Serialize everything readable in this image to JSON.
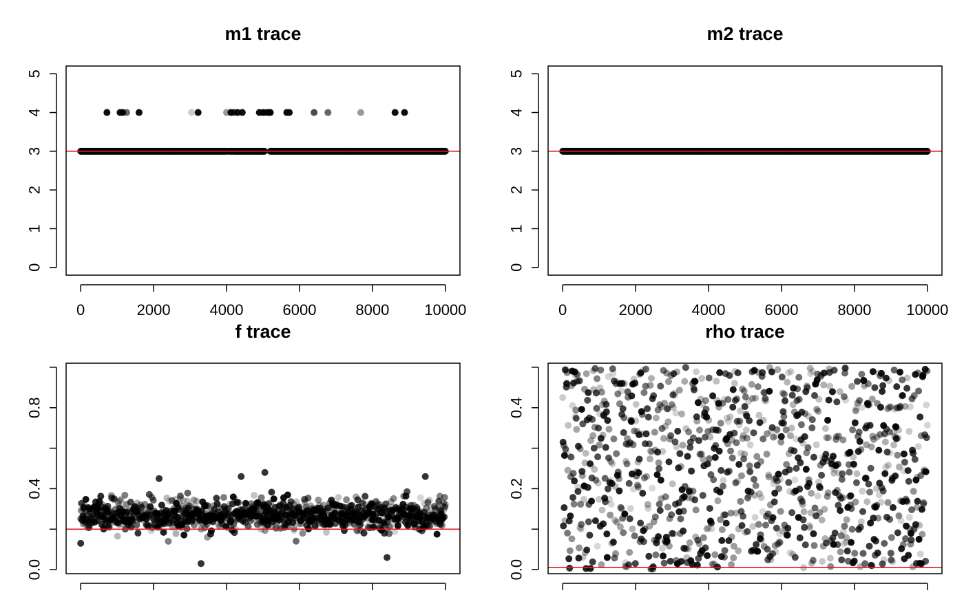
{
  "chart_data": [
    {
      "type": "scatter",
      "title": "m1 trace",
      "xlim": [
        0,
        10000
      ],
      "ylim": [
        -0.2,
        5.2
      ],
      "xticks": [
        0,
        2000,
        4000,
        6000,
        8000,
        10000
      ],
      "yticks": [
        0,
        1,
        2,
        3,
        4,
        5
      ],
      "x_tick_labels": [
        "0",
        "2000",
        "4000",
        "6000",
        "8000",
        "10000"
      ],
      "y_tick_labels": [
        "0",
        "1",
        "2",
        "3",
        "4",
        "5"
      ],
      "reference_line": 3,
      "reference_color": "#e41a1c",
      "point_color": "#000000",
      "show_x_tick_labels": true,
      "points": [
        {
          "x": 720,
          "y": 4,
          "a": 0.95
        },
        {
          "x": 1080,
          "y": 4,
          "a": 0.95
        },
        {
          "x": 1150,
          "y": 4,
          "a": 0.95
        },
        {
          "x": 1260,
          "y": 4,
          "a": 0.6
        },
        {
          "x": 1600,
          "y": 4,
          "a": 0.95
        },
        {
          "x": 3040,
          "y": 4,
          "a": 0.2
        },
        {
          "x": 3220,
          "y": 4,
          "a": 0.95
        },
        {
          "x": 4000,
          "y": 4,
          "a": 0.4
        },
        {
          "x": 4120,
          "y": 4,
          "a": 0.95
        },
        {
          "x": 4200,
          "y": 4,
          "a": 0.8
        },
        {
          "x": 4300,
          "y": 4,
          "a": 0.95
        },
        {
          "x": 4430,
          "y": 4,
          "a": 0.95
        },
        {
          "x": 4900,
          "y": 4,
          "a": 0.95
        },
        {
          "x": 5000,
          "y": 4,
          "a": 0.95
        },
        {
          "x": 5080,
          "y": 4,
          "a": 0.8
        },
        {
          "x": 5150,
          "y": 4,
          "a": 0.95
        },
        {
          "x": 5200,
          "y": 4,
          "a": 0.95
        },
        {
          "x": 5650,
          "y": 4,
          "a": 0.95
        },
        {
          "x": 5720,
          "y": 4,
          "a": 0.95
        },
        {
          "x": 6400,
          "y": 4,
          "a": 0.7
        },
        {
          "x": 6780,
          "y": 4,
          "a": 0.6
        },
        {
          "x": 7680,
          "y": 4,
          "a": 0.4
        },
        {
          "x": 8620,
          "y": 4,
          "a": 0.95
        },
        {
          "x": 8880,
          "y": 4,
          "a": 0.95
        }
      ],
      "dense_band": {
        "y": 3,
        "x_from": 0,
        "x_to": 10000,
        "step": 20,
        "gaps": [
          [
            4030,
            4080
          ],
          [
            4150,
            4180
          ],
          [
            5050,
            5200
          ]
        ]
      }
    },
    {
      "type": "scatter",
      "title": "m2 trace",
      "xlim": [
        0,
        10000
      ],
      "ylim": [
        -0.2,
        5.2
      ],
      "xticks": [
        0,
        2000,
        4000,
        6000,
        8000,
        10000
      ],
      "yticks": [
        0,
        1,
        2,
        3,
        4,
        5
      ],
      "x_tick_labels": [
        "0",
        "2000",
        "4000",
        "6000",
        "8000",
        "10000"
      ],
      "y_tick_labels": [
        "0",
        "1",
        "2",
        "3",
        "4",
        "5"
      ],
      "reference_line": 3,
      "reference_color": "#e41a1c",
      "point_color": "#000000",
      "show_x_tick_labels": true,
      "points": [],
      "dense_band": {
        "y": 3,
        "x_from": 0,
        "x_to": 10000,
        "step": 20,
        "gaps": []
      }
    },
    {
      "type": "scatter",
      "title": "f trace",
      "xlim": [
        0,
        10000
      ],
      "ylim": [
        -0.02,
        1.02
      ],
      "xticks": [
        0,
        2000,
        4000,
        6000,
        8000,
        10000
      ],
      "yticks": [
        0.0,
        0.4,
        0.8
      ],
      "y_minor_ticks": [
        0.2,
        0.6,
        1.0
      ],
      "y_tick_labels": [
        "0.0",
        "0.4",
        "0.8"
      ],
      "reference_line": 0.2,
      "reference_color": "#e41a1c",
      "point_color": "#000000",
      "show_x_tick_labels": false,
      "n_points": 1000,
      "distribution": {
        "center": 0.27,
        "spread": 0.055,
        "min": 0.03,
        "max": 0.48
      },
      "notable_points": [
        {
          "x": 0,
          "y": 0.13
        },
        {
          "x": 2150,
          "y": 0.45
        },
        {
          "x": 3300,
          "y": 0.03
        },
        {
          "x": 4400,
          "y": 0.46
        },
        {
          "x": 5050,
          "y": 0.48
        },
        {
          "x": 8400,
          "y": 0.06
        },
        {
          "x": 9450,
          "y": 0.46
        }
      ]
    },
    {
      "type": "scatter",
      "title": "rho trace",
      "xlim": [
        0,
        10000
      ],
      "ylim": [
        -0.01,
        0.51
      ],
      "xticks": [
        0,
        2000,
        4000,
        6000,
        8000,
        10000
      ],
      "yticks": [
        0.0,
        0.2,
        0.4
      ],
      "y_minor_ticks": [
        0.1,
        0.3,
        0.5
      ],
      "y_tick_labels": [
        "0.0",
        "0.2",
        "0.4"
      ],
      "reference_line": 0.005,
      "reference_color": "#e41a1c",
      "point_color": "#000000",
      "show_x_tick_labels": false,
      "n_points": 1000,
      "distribution": {
        "min": 0.0,
        "max": 0.5,
        "uniform": true
      }
    }
  ]
}
